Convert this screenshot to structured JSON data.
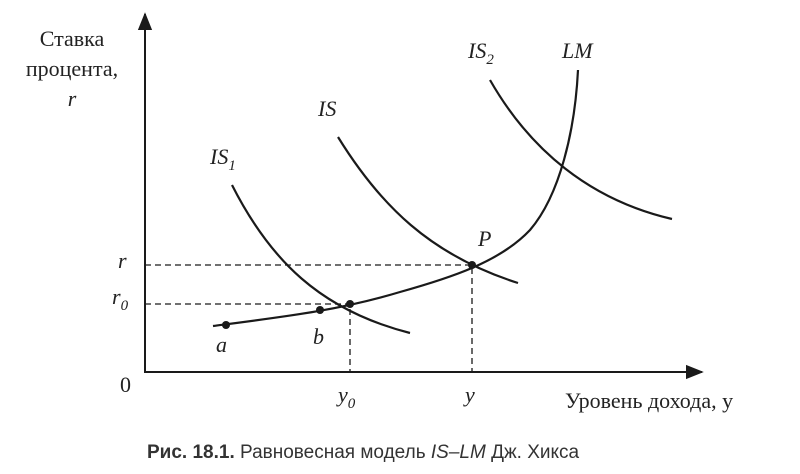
{
  "axes": {
    "y_label": [
      "Ставка",
      "процента,",
      "r"
    ],
    "x_label": "Уровень дохода, y",
    "origin": "0"
  },
  "curves": {
    "is2": {
      "main": "IS",
      "sub": "2"
    },
    "lm": "LM",
    "is": "IS",
    "is1": {
      "main": "IS",
      "sub": "1"
    }
  },
  "points": {
    "p": "P",
    "a": "a",
    "b": "b"
  },
  "levels": {
    "r": "r",
    "r0": {
      "main": "r",
      "sub": "0"
    },
    "y": "y",
    "y0": {
      "main": "y",
      "sub": "0"
    }
  },
  "caption": {
    "label": "Рис. 18.1.",
    "text_before": "Равновесная модель",
    "emphasis": "IS–LM",
    "text_after": "Дж. Хикса"
  }
}
